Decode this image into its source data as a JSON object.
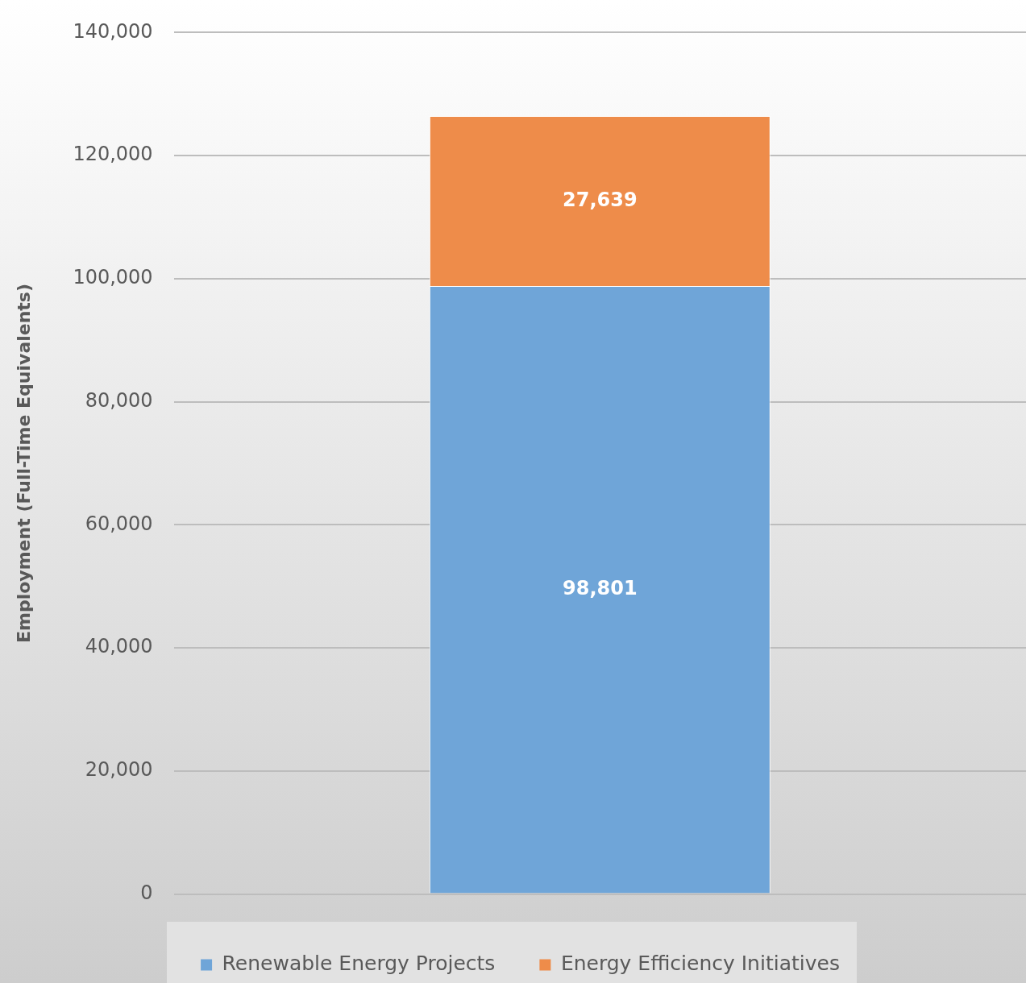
{
  "chart_data": {
    "type": "bar",
    "ylabel": "Employment (Full-Time Equivalents)",
    "categories": [
      null
    ],
    "series": [
      {
        "name": "Renewable Energy Projects",
        "color": "#6fa5d8",
        "values": [
          98801
        ],
        "value_labels": [
          "98,801"
        ]
      },
      {
        "name": "Energy Efficiency Initiatives",
        "color": "#ee8c4a",
        "values": [
          27639
        ],
        "value_labels": [
          "27,639"
        ]
      }
    ],
    "stacked": true,
    "ylim": [
      0,
      140000
    ],
    "yticks": [
      0,
      {
        "value": 20000,
        "label": "20,000"
      },
      {
        "value": 40000,
        "label": "40,000"
      },
      {
        "value": 60000,
        "label": "60,000"
      },
      {
        "value": 80000,
        "label": "80,000"
      },
      {
        "value": 100000,
        "label": "100,000"
      },
      {
        "value": 120000,
        "label": "120,000"
      },
      {
        "value": 140000,
        "label": "140,000"
      }
    ],
    "grid": "y",
    "legend": "bottom"
  }
}
